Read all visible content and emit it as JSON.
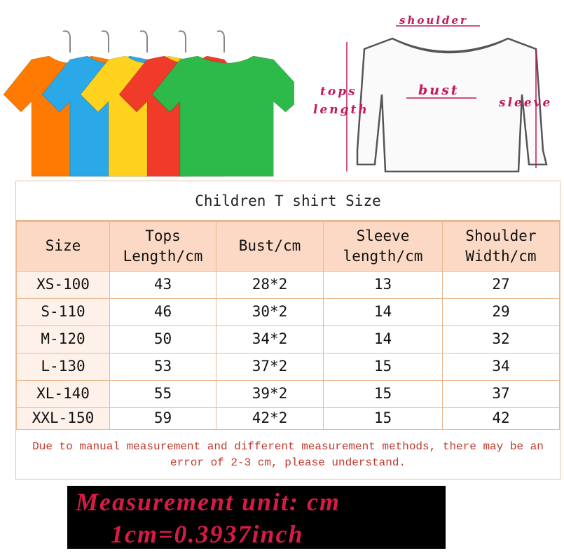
{
  "diagram": {
    "shoulder": "shoulder",
    "tops_length_1": "tops",
    "tops_length_2": "length",
    "bust": "bust",
    "sleeve": "sleeve"
  },
  "shirt_colors": [
    "#ff7a00",
    "#2aa8e8",
    "#ffd21e",
    "#f03a2a",
    "#2dba4a"
  ],
  "table": {
    "title": "Children T shirt Size",
    "headers": [
      [
        "Size",
        ""
      ],
      [
        "Tops",
        "Length/cm"
      ],
      [
        "Bust/cm",
        ""
      ],
      [
        "Sleeve",
        "length/cm"
      ],
      [
        "Shoulder",
        "Width/cm"
      ]
    ],
    "rows": [
      [
        "XS-100",
        "43",
        "28*2",
        "13",
        "27"
      ],
      [
        "S-110",
        "46",
        "30*2",
        "14",
        "29"
      ],
      [
        "M-120",
        "50",
        "34*2",
        "14",
        "32"
      ],
      [
        "L-130",
        "53",
        "37*2",
        "15",
        "34"
      ],
      [
        "XL-140",
        "55",
        "39*2",
        "15",
        "37"
      ],
      [
        "XXL-150",
        "59",
        "42*2",
        "15",
        "42"
      ]
    ],
    "note": "Due to manual measurement and different measurement methods, there may be an error of 2-3 cm, please understand."
  },
  "unit": {
    "line1": "Measurement unit: cm",
    "line2": "1cm=0.3937inch"
  },
  "colors": {
    "header_bg": "#fbd9c4",
    "border": "#e8b890",
    "note": "#c0392b",
    "unit_text": "#d81b45"
  }
}
